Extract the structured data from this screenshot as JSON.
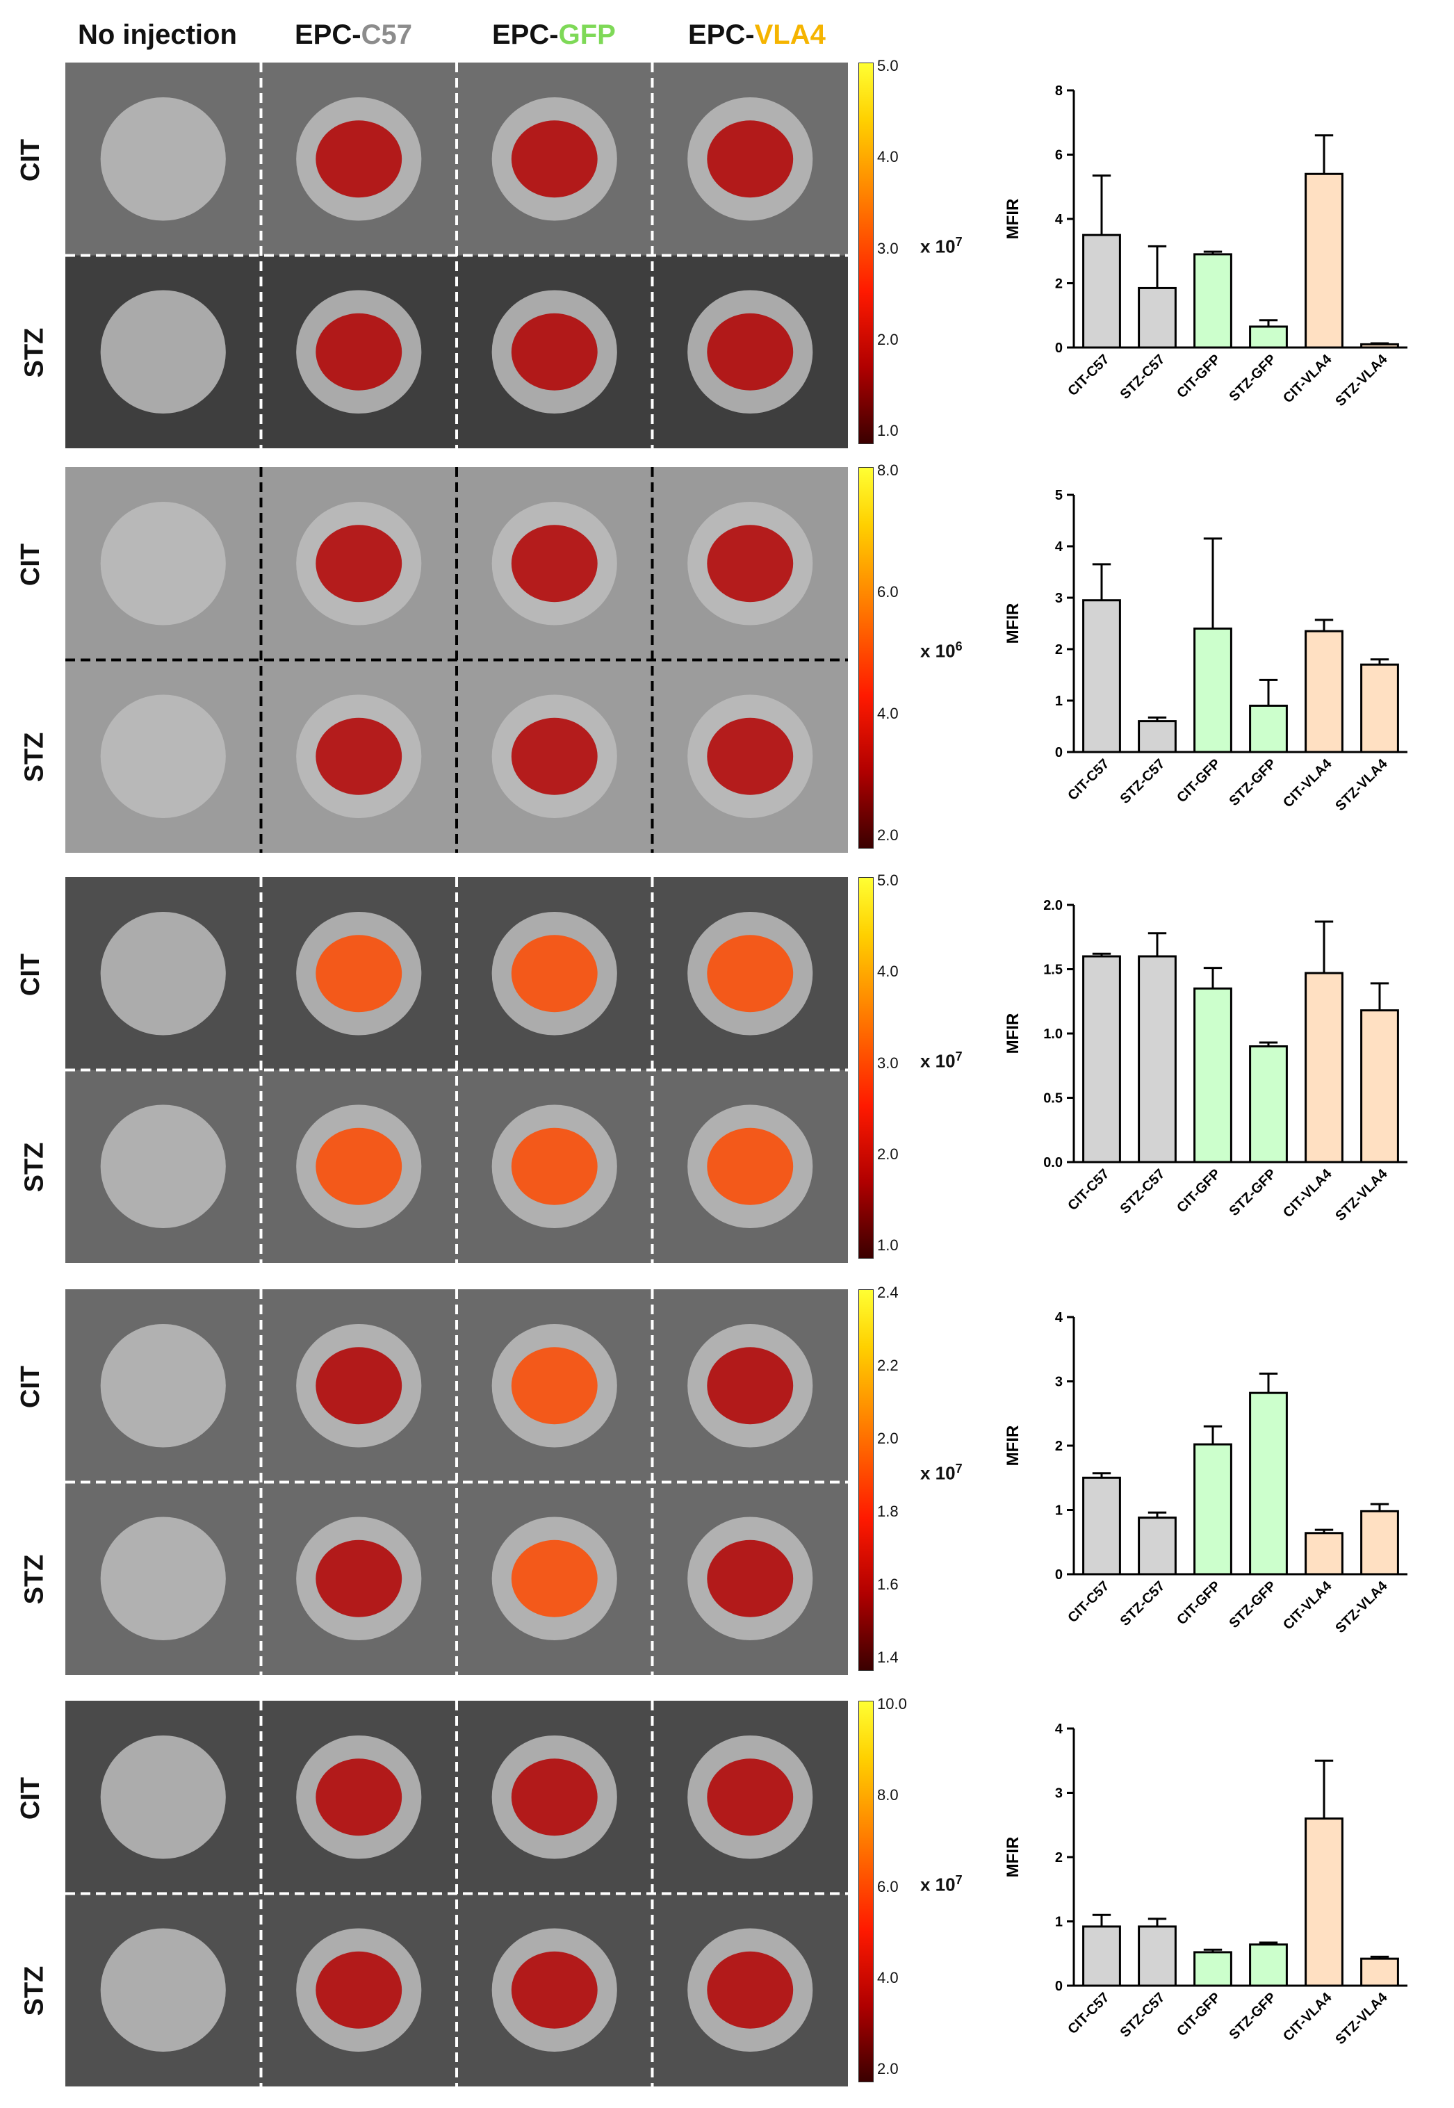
{
  "column_headers": [
    {
      "prefix": "No injection",
      "suffix": "",
      "color": "#111111"
    },
    {
      "prefix": "EPC-",
      "suffix": "C57",
      "color": "#8c8c8c"
    },
    {
      "prefix": "EPC-",
      "suffix": "GFP",
      "color": "#7ed957"
    },
    {
      "prefix": "EPC-",
      "suffix": "VLA4",
      "color": "#f5b400"
    }
  ],
  "row_labels": [
    "CIT",
    "STZ"
  ],
  "panels": [
    {
      "scale_ticks": [
        "5.0",
        "4.0",
        "3.0",
        "2.0",
        "1.0"
      ],
      "scale_unit_base": "x 10",
      "scale_unit_exp": "7"
    },
    {
      "scale_ticks": [
        "8.0",
        "6.0",
        "4.0",
        "2.0"
      ],
      "scale_unit_base": "x 10",
      "scale_unit_exp": "6"
    },
    {
      "scale_ticks": [
        "5.0",
        "4.0",
        "3.0",
        "2.0",
        "1.0"
      ],
      "scale_unit_base": "x 10",
      "scale_unit_exp": "7"
    },
    {
      "scale_ticks": [
        "2.4",
        "2.2",
        "2.0",
        "1.8",
        "1.6",
        "1.4"
      ],
      "scale_unit_base": "x 10",
      "scale_unit_exp": "7"
    },
    {
      "scale_ticks": [
        "10.0",
        "8.0",
        "6.0",
        "4.0",
        "2.0"
      ],
      "scale_unit_base": "x 10",
      "scale_unit_exp": "7"
    }
  ],
  "bar_colors": [
    "#d3d3d3",
    "#d3d3d3",
    "#ccffcc",
    "#ccffcc",
    "#ffe0c2",
    "#ffe0c2"
  ],
  "chart_data": [
    {
      "type": "bar",
      "categories": [
        "CIT-C57",
        "STZ-C57",
        "CIT-GFP",
        "STZ-GFP",
        "CIT-VLA4",
        "STZ-VLA4"
      ],
      "values": [
        3.5,
        1.85,
        2.9,
        0.65,
        5.4,
        0.1
      ],
      "errors": [
        1.85,
        1.3,
        0.08,
        0.2,
        1.2,
        0.03
      ],
      "ylabel": "MFIR",
      "ylim": [
        0,
        8
      ],
      "yticks": [
        "0",
        "2",
        "4",
        "6",
        "8"
      ]
    },
    {
      "type": "bar",
      "categories": [
        "CIT-C57",
        "STZ-C57",
        "CIT-GFP",
        "STZ-GFP",
        "CIT-VLA4",
        "STZ-VLA4"
      ],
      "values": [
        2.95,
        0.6,
        2.4,
        0.9,
        2.35,
        1.7
      ],
      "errors": [
        0.7,
        0.07,
        1.75,
        0.5,
        0.22,
        0.1
      ],
      "ylabel": "MFIR",
      "ylim": [
        0,
        5
      ],
      "yticks": [
        "0",
        "1",
        "2",
        "3",
        "4",
        "5"
      ]
    },
    {
      "type": "bar",
      "categories": [
        "CIT-C57",
        "STZ-C57",
        "CIT-GFP",
        "STZ-GFP",
        "CIT-VLA4",
        "STZ-VLA4"
      ],
      "values": [
        1.6,
        1.6,
        1.35,
        0.9,
        1.47,
        1.18
      ],
      "errors": [
        0.02,
        0.18,
        0.16,
        0.03,
        0.4,
        0.21
      ],
      "ylabel": "MFIR",
      "ylim": [
        0,
        2.0
      ],
      "yticks": [
        "0.0",
        "0.5",
        "1.0",
        "1.5",
        "2.0"
      ]
    },
    {
      "type": "bar",
      "categories": [
        "CIT-C57",
        "STZ-C57",
        "CIT-GFP",
        "STZ-GFP",
        "CIT-VLA4",
        "STZ-VLA4"
      ],
      "values": [
        1.5,
        0.88,
        2.02,
        2.82,
        0.64,
        0.98
      ],
      "errors": [
        0.07,
        0.08,
        0.28,
        0.3,
        0.05,
        0.11
      ],
      "ylabel": "MFIR",
      "ylim": [
        0,
        4
      ],
      "yticks": [
        "0",
        "1",
        "2",
        "3",
        "4"
      ]
    },
    {
      "type": "bar",
      "categories": [
        "CIT-C57",
        "STZ-C57",
        "CIT-GFP",
        "STZ-GFP",
        "CIT-VLA4",
        "STZ-VLA4"
      ],
      "values": [
        0.92,
        0.92,
        0.52,
        0.64,
        2.6,
        0.42
      ],
      "errors": [
        0.18,
        0.12,
        0.04,
        0.03,
        0.9,
        0.03
      ],
      "ylabel": "MFIR",
      "ylim": [
        0,
        4
      ],
      "yticks": [
        "0",
        "1",
        "2",
        "3",
        "4"
      ]
    }
  ]
}
